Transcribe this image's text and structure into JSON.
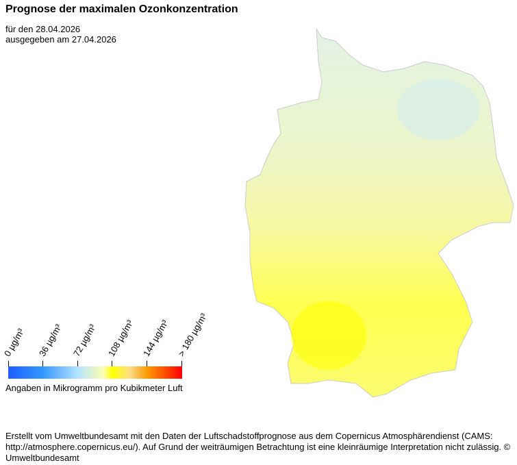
{
  "title": "Prognose der maximalen Ozonkonzentration",
  "forecast_date": "für den 28.04.2026",
  "issued_date": "ausgegeben am 27.04.2026",
  "legend": {
    "ticks": [
      "0  µg/m³",
      "36  µg/m³",
      "72  µg/m³",
      "108  µg/m³",
      "144  µg/m³",
      "> 180  µg/m³"
    ],
    "colors": [
      "#1e5cff",
      "#3399ff",
      "#b4e2ff",
      "#ffffb0",
      "#ffff00",
      "#ff9900",
      "#ff0000"
    ],
    "unit_note": "Angaben in Mikrogramm pro Kubikmeter Luft"
  },
  "map": {
    "region": "Germany",
    "north_color": "#e2f2e6",
    "central_color": "#f6f8a8",
    "south_color": "#ffff30"
  },
  "footer": "Erstellt vom Umweltbundesamt mit den Daten der Luftschadstoffprognose aus dem Copernicus Atmosphärendienst (CAMS: http://atmosphere.copernicus.eu/). Auf Grund der weiträumigen Betrachtung ist eine kleinräumige Interpretation nicht zulässig. © Umweltbundesamt"
}
